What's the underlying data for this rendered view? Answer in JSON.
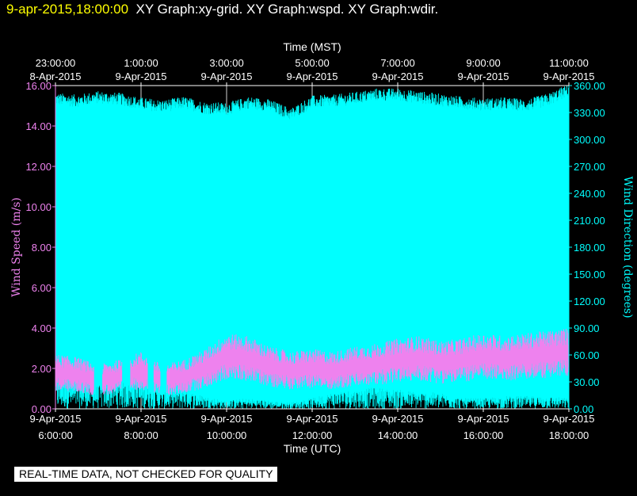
{
  "header": {
    "timestamp": "9-apr-2015,18:00:00",
    "titles": "XY Graph:xy-grid.  XY Graph:wspd.  XY Graph:wdir."
  },
  "disclaimer": "REAL-TIME DATA, NOT CHECKED FOR QUALITY",
  "colors": {
    "background": "#000000",
    "wspd": "#ee82ee",
    "wdir": "#00ffff",
    "grid": "#d0d0d0",
    "axis_text": "#ffffff"
  },
  "chart_data": {
    "type": "line",
    "top_axis": {
      "title": "Time (MST)",
      "ticks": [
        {
          "time": "23:00:00",
          "date": "8-Apr-2015"
        },
        {
          "time": "1:00:00",
          "date": "9-Apr-2015"
        },
        {
          "time": "3:00:00",
          "date": "9-Apr-2015"
        },
        {
          "time": "5:00:00",
          "date": "9-Apr-2015"
        },
        {
          "time": "7:00:00",
          "date": "9-Apr-2015"
        },
        {
          "time": "9:00:00",
          "date": "9-Apr-2015"
        },
        {
          "time": "11:00:00",
          "date": "9-Apr-2015"
        }
      ]
    },
    "bottom_axis": {
      "title": "Time (UTC)",
      "ticks": [
        {
          "time": "6:00:00",
          "date": "9-Apr-2015"
        },
        {
          "time": "8:00:00",
          "date": "9-Apr-2015"
        },
        {
          "time": "10:00:00",
          "date": "9-Apr-2015"
        },
        {
          "time": "12:00:00",
          "date": "9-Apr-2015"
        },
        {
          "time": "14:00:00",
          "date": "9-Apr-2015"
        },
        {
          "time": "16:00:00",
          "date": "9-Apr-2015"
        },
        {
          "time": "18:00:00",
          "date": "9-Apr-2015"
        }
      ],
      "xlim_utc_hours": [
        6,
        18
      ]
    },
    "left_axis": {
      "title": "Wind Speed (m/s)",
      "ylim": [
        0,
        16
      ],
      "ticks": [
        "0.00",
        "2.00",
        "4.00",
        "6.00",
        "8.00",
        "10.00",
        "12.00",
        "14.00",
        "16.00"
      ]
    },
    "right_axis": {
      "title": "Wind Direction (degrees)",
      "ylim": [
        0,
        360
      ],
      "ticks": [
        "0.00",
        "30.00",
        "60.00",
        "90.00",
        "120.00",
        "150.00",
        "180.00",
        "210.00",
        "240.00",
        "270.00",
        "300.00",
        "330.00",
        "360.00"
      ]
    },
    "grid": "vertical",
    "series": [
      {
        "name": "wspd",
        "axis": "left",
        "x_utc_hours": [
          6.0,
          6.5,
          7.0,
          7.5,
          8.0,
          8.5,
          9.0,
          9.5,
          10.0,
          10.5,
          11.0,
          11.5,
          12.0,
          12.5,
          13.0,
          13.5,
          14.0,
          14.5,
          15.0,
          15.5,
          16.0,
          16.5,
          17.0,
          17.5,
          18.0
        ],
        "values": [
          1.8,
          1.7,
          1.4,
          1.6,
          1.9,
          1.4,
          1.6,
          2.0,
          2.6,
          2.5,
          2.1,
          1.9,
          2.0,
          1.9,
          2.1,
          2.2,
          2.4,
          2.5,
          2.3,
          2.4,
          2.6,
          2.5,
          2.6,
          2.7,
          2.8
        ]
      },
      {
        "name": "wdir",
        "axis": "right",
        "x_utc_hours": [
          6.0,
          6.5,
          7.0,
          7.5,
          8.0,
          8.5,
          9.0,
          9.5,
          10.0,
          10.5,
          11.0,
          11.5,
          12.0,
          12.5,
          13.0,
          13.5,
          14.0,
          14.5,
          15.0,
          15.5,
          16.0,
          16.5,
          17.0,
          17.5,
          18.0
        ],
        "upper_values": [
          345,
          343,
          347,
          345,
          340,
          337,
          341,
          335,
          334,
          341,
          338,
          328,
          342,
          343,
          346,
          350,
          350,
          347,
          344,
          341,
          339,
          340,
          338,
          344,
          355
        ],
        "lower_values": [
          25,
          20,
          22,
          25,
          22,
          15,
          18,
          12,
          8,
          10,
          8,
          6,
          10,
          16,
          18,
          20,
          18,
          16,
          15,
          10,
          10,
          12,
          12,
          12,
          10
        ]
      }
    ]
  }
}
